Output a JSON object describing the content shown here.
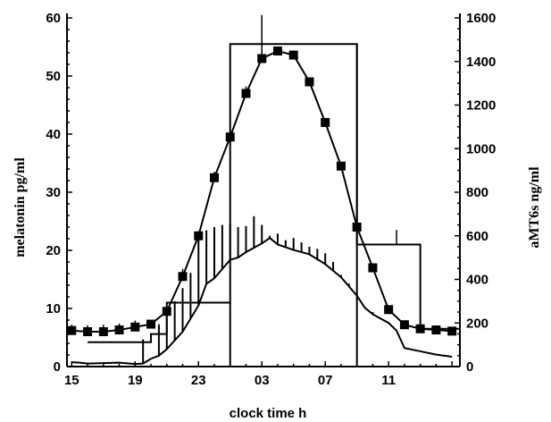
{
  "chart_data": {
    "type": "line",
    "xlabel": "clock time h",
    "ylabel_left": "melatonin pg/ml",
    "ylabel_right": "aMT6s ng/ml",
    "x_hours_since_15h": [
      0,
      1,
      2,
      3,
      4,
      5,
      6,
      7,
      8,
      9,
      10,
      11,
      12,
      13,
      14,
      15,
      16,
      17,
      18,
      19,
      20,
      21,
      22,
      23,
      24
    ],
    "x_tick_labels": [
      "15",
      "19",
      "23",
      "03",
      "07",
      "11"
    ],
    "x_tick_positions": [
      0,
      4,
      8,
      12,
      16,
      20
    ],
    "xlim": [
      -0.3,
      24.5
    ],
    "left_axis": {
      "ylim": [
        0,
        60
      ],
      "ticks": [
        0,
        10,
        20,
        30,
        40,
        50,
        60
      ]
    },
    "right_axis": {
      "ylim": [
        0,
        1600
      ],
      "ticks": [
        0,
        200,
        400,
        600,
        800,
        1000,
        1200,
        1400,
        1600
      ]
    },
    "series": [
      {
        "role": "melatonin mean (squares)",
        "axis": "left",
        "x": [
          0,
          1,
          2,
          3,
          4,
          5,
          6,
          7,
          8,
          9,
          10,
          11,
          12,
          13,
          14,
          15,
          16,
          17,
          18,
          19,
          20,
          21,
          22,
          23,
          24
        ],
        "y": [
          6.2,
          6.0,
          6.0,
          6.3,
          6.8,
          7.3,
          9.5,
          15.5,
          22.5,
          32.5,
          39.5,
          47.0,
          53.0,
          54.3,
          53.6,
          49.0,
          42.0,
          34.5,
          24.0,
          17.0,
          9.8,
          7.2,
          6.5,
          6.3,
          6.1
        ]
      },
      {
        "role": "melatonin upper SEM (vertical bars)",
        "axis": "left",
        "x": [
          0,
          1,
          2,
          3,
          4,
          5,
          6,
          7,
          8,
          9,
          10,
          11,
          12,
          13,
          14,
          15,
          16,
          17,
          18,
          19,
          20,
          21,
          22,
          23,
          24
        ],
        "y": [
          7.2,
          7.1,
          7.2,
          7.4,
          7.9,
          8.0,
          10.5,
          16.8,
          23.3,
          33.5,
          40.6,
          48.2,
          60.5,
          54.0,
          53.8,
          49.4,
          42.4,
          35.0,
          24.4,
          17.4,
          10.2,
          7.5,
          6.8,
          6.6,
          6.4
        ]
      },
      {
        "role": "aMT6s mean (line)",
        "axis": "right",
        "x": [
          0,
          0.5,
          1,
          2,
          3,
          4,
          4.5,
          5,
          5.5,
          6,
          7,
          8,
          8.5,
          9,
          10,
          10.5,
          11,
          12,
          12.5,
          13,
          14,
          15,
          16,
          17,
          18,
          18.5,
          19,
          20,
          20.5,
          21,
          22,
          23,
          24
        ],
        "y": [
          20,
          18,
          14,
          16,
          18,
          12,
          14,
          36,
          50,
          80,
          160,
          280,
          380,
          405,
          490,
          500,
          525,
          565,
          590,
          560,
          535,
          515,
          470,
          410,
          325,
          270,
          240,
          200,
          165,
          85,
          70,
          55,
          45
        ]
      },
      {
        "role": "aMT6s upper SEM (vertical bars)",
        "axis": "right",
        "x": [
          4.5,
          5.5,
          6,
          6.5,
          7,
          7.5,
          8,
          8.5,
          9,
          9.5,
          10,
          10.5,
          11,
          11.5,
          12,
          12.5,
          13,
          13.5,
          14,
          14.5,
          15,
          15.5,
          16,
          16.5,
          17,
          17.5,
          18,
          18.5,
          19
        ],
        "y": [
          125,
          190,
          260,
          300,
          360,
          430,
          600,
          625,
          640,
          650,
          655,
          640,
          645,
          690,
          650,
          600,
          610,
          580,
          590,
          570,
          550,
          540,
          520,
          480,
          420,
          380,
          340,
          270,
          250
        ]
      },
      {
        "role": "melatonin stepwise collection intervals",
        "axis": "left",
        "steps": [
          {
            "x_start": 1,
            "x_end": 5,
            "y": 4.2
          },
          {
            "x_start": 5,
            "x_end": 6,
            "y": 5.6
          },
          {
            "x_start": 6,
            "x_end": 10,
            "y": 11.0
          },
          {
            "x_start": 10,
            "x_end": 18,
            "y": 55.5
          },
          {
            "x_start": 18,
            "x_end": 22,
            "y": 21.0
          },
          {
            "x_start": 22,
            "x_end": 24.5,
            "y": 6.5
          }
        ],
        "step_errors": [
          {
            "x": 5.5,
            "y_top": 7.3
          },
          {
            "x": 20.5,
            "y_top": 23.5
          }
        ]
      }
    ]
  }
}
